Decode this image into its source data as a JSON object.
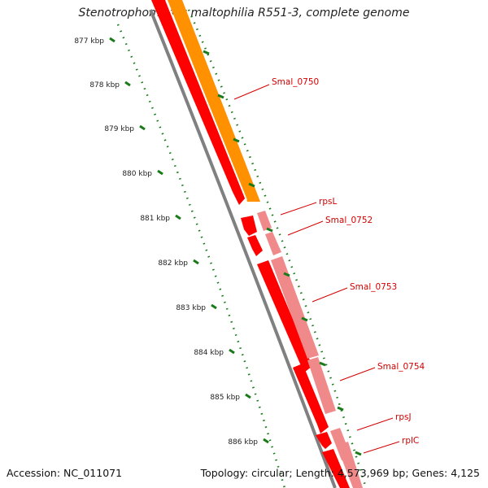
{
  "title": "Stenotrophomonas maltophilia R551-3, complete genome",
  "footer": {
    "accession": "Accession: NC_011071",
    "summary": "Topology: circular; Length: 4,573,969 bp; Genes: 4,125"
  },
  "kbp_ticks": [
    "877 kbp",
    "878 kbp",
    "879 kbp",
    "880 kbp",
    "881 kbp",
    "882 kbp",
    "883 kbp",
    "884 kbp",
    "885 kbp",
    "886 kbp"
  ],
  "genes": [
    {
      "label": "Smal_0750",
      "strand": "reverse-cds",
      "color": "#ff0000"
    },
    {
      "label": "rpsL",
      "strand": "forward",
      "color": "#ff0000"
    },
    {
      "label": "Smal_0752",
      "strand": "forward",
      "color": "#ff0000"
    },
    {
      "label": "Smal_0753",
      "strand": "forward",
      "color": "#ff0000"
    },
    {
      "label": "Smal_0754",
      "strand": "forward",
      "color": "#ff0000"
    },
    {
      "label": "rpsJ",
      "strand": "forward",
      "color": "#ff0000"
    },
    {
      "label": "rplC",
      "strand": "forward",
      "color": "#ff0000"
    }
  ],
  "colors": {
    "cds": "#ff0000",
    "cds_light": "#f08a8a",
    "orange_feature": "#ff9000",
    "backbone": "#808080",
    "ruler": "#1a7a1a",
    "label": "#d40000"
  }
}
